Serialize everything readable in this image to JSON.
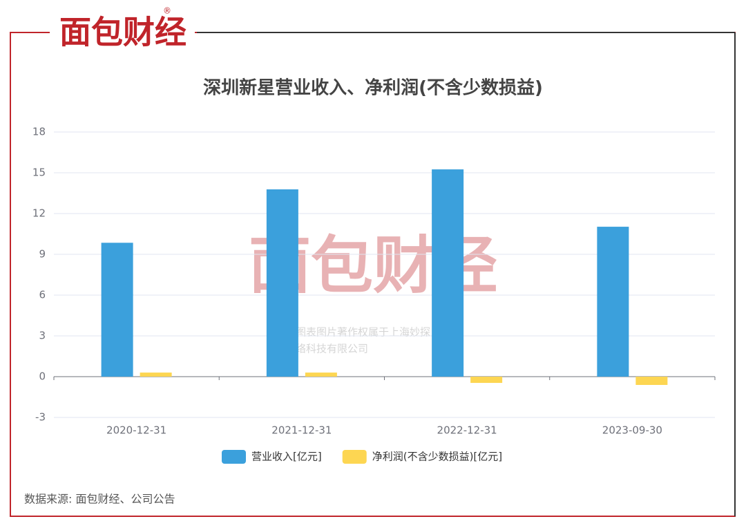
{
  "logo": "面包财经",
  "logo_mark": "®",
  "watermark": [
    "本图表图片著作权属于上海妙探",
    "网络科技有限公司"
  ],
  "source": "数据来源: 面包财经、公司公告",
  "chart_data": {
    "type": "bar",
    "title": "深圳新星营业收入、净利润(不含少数损益)",
    "categories": [
      "2020-12-31",
      "2021-12-31",
      "2022-12-31",
      "2023-09-30"
    ],
    "series": [
      {
        "name": "营业收入[亿元]",
        "color": "#3ba0dc",
        "values": [
          9.85,
          13.78,
          15.25,
          11.03
        ]
      },
      {
        "name": "净利润(不含少数损益)[亿元]",
        "color": "#fdd652",
        "values": [
          0.3,
          0.3,
          -0.46,
          -0.61
        ]
      }
    ],
    "ylim": [
      -3,
      18
    ],
    "yticks": [
      -3,
      0,
      3,
      6,
      9,
      12,
      15,
      18
    ],
    "grid": true,
    "legend": "bottom"
  }
}
